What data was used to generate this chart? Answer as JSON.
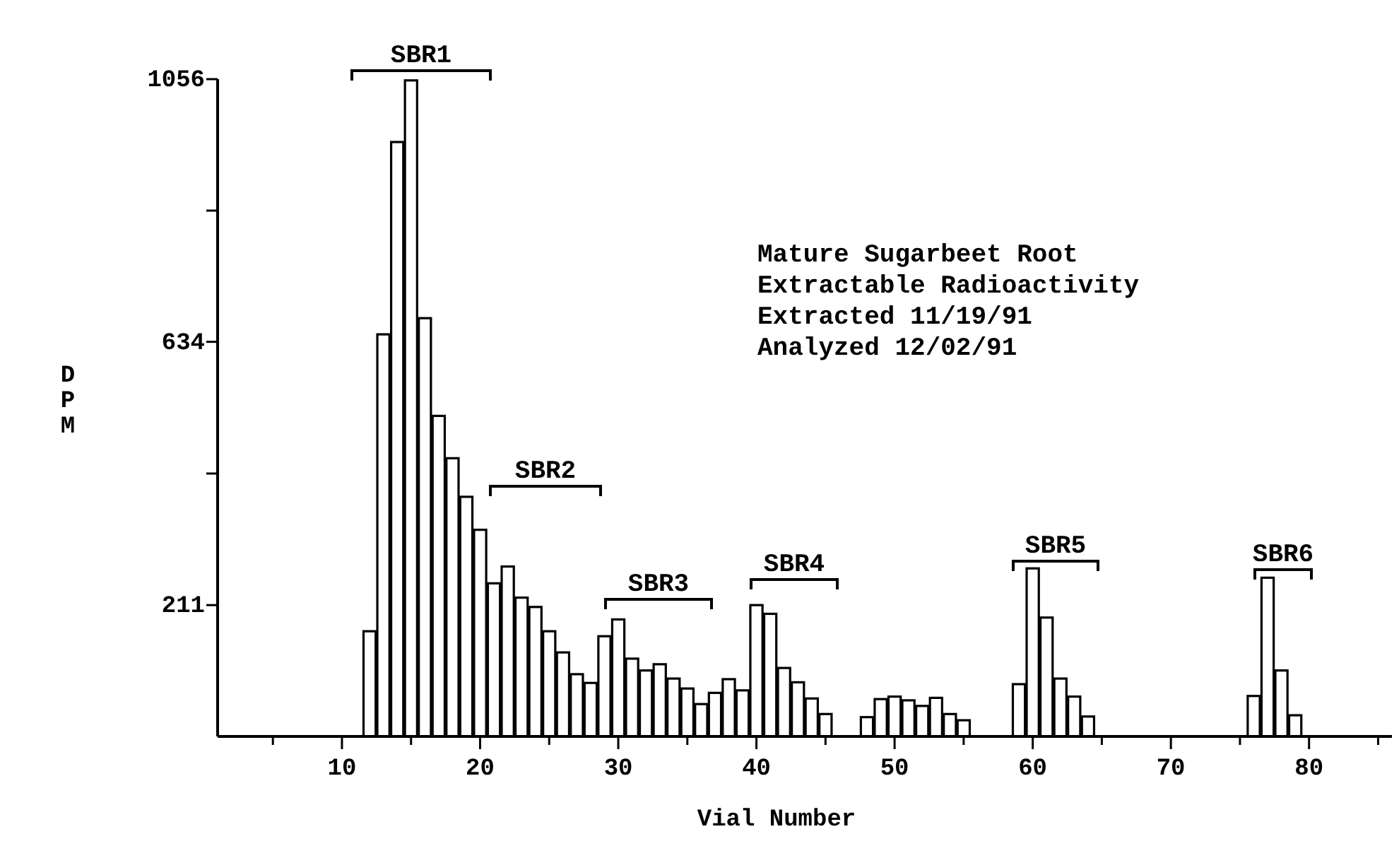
{
  "chart_data": {
    "type": "bar",
    "xlabel": "Vial Number",
    "ylabel": "DPM",
    "x": [
      12,
      13,
      14,
      15,
      16,
      17,
      18,
      19,
      20,
      21,
      22,
      23,
      24,
      25,
      26,
      27,
      28,
      29,
      30,
      31,
      32,
      33,
      34,
      35,
      36,
      37,
      38,
      39,
      40,
      41,
      42,
      43,
      44,
      45,
      48,
      49,
      50,
      51,
      52,
      53,
      54,
      55,
      59,
      60,
      61,
      62,
      63,
      64,
      76,
      77,
      78,
      79
    ],
    "values": [
      169,
      646,
      955,
      1054,
      672,
      515,
      447,
      385,
      332,
      246,
      273,
      223,
      208,
      169,
      135,
      100,
      86,
      161,
      188,
      125,
      106,
      116,
      93,
      77,
      52,
      70,
      92,
      74,
      211,
      197,
      110,
      87,
      61,
      36,
      31,
      60,
      64,
      58,
      49,
      62,
      36,
      26,
      84,
      270,
      191,
      93,
      64,
      32,
      65,
      255,
      106,
      34
    ],
    "color": "#ffffff",
    "xlim": [
      1,
      86
    ],
    "xticks": [
      {
        "value": 5,
        "label": null
      },
      10,
      {
        "value": 15,
        "label": null
      },
      20,
      {
        "value": 25,
        "label": null
      },
      30,
      {
        "value": 35,
        "label": null
      },
      40,
      {
        "value": 45,
        "label": null
      },
      50,
      {
        "value": 55,
        "label": null
      },
      60,
      {
        "value": 65,
        "label": null
      },
      70,
      {
        "value": 75,
        "label": null
      },
      80,
      {
        "value": 85,
        "label": null
      }
    ],
    "ylim": [
      0,
      1056
    ],
    "yticks": [
      211,
      {
        "value": 422.4,
        "label": null
      },
      634,
      {
        "value": 844.8,
        "label": null
      },
      1056
    ],
    "grid": false,
    "annotations": [
      "SBR1",
      "SBR2",
      "SBR3",
      "SBR4",
      "SBR5",
      "SBR6",
      "Mature Sugarbeet Root",
      "Extractable Radioactivity",
      "Extracted 11/19/91",
      "Analyzed 12/02/91"
    ]
  }
}
